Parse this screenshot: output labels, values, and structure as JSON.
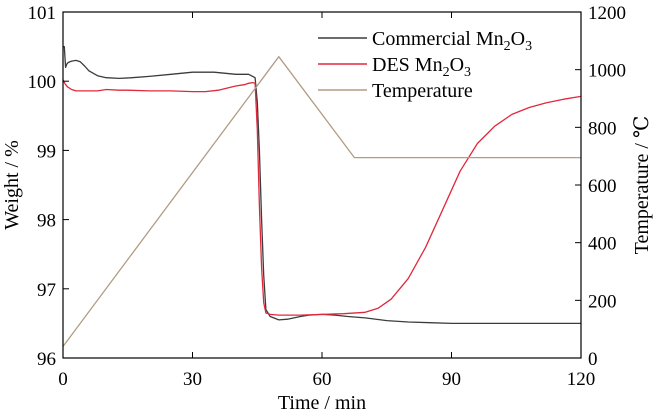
{
  "chart_data": {
    "type": "line",
    "xlabel": "Time / min",
    "ylabel_left": "Weight / %",
    "ylabel_right": "Temperature / ℃",
    "xlim": [
      0,
      120
    ],
    "ylim_left": [
      96,
      101
    ],
    "ylim_right": [
      0,
      1200
    ],
    "xticks": [
      "0",
      "30",
      "60",
      "90",
      "120"
    ],
    "yticks_left": [
      "96",
      "97",
      "98",
      "99",
      "100",
      "101"
    ],
    "yticks_right": [
      "0",
      "200",
      "400",
      "600",
      "800",
      "1000",
      "1200"
    ],
    "legend_position": "top-right",
    "grid": false,
    "series": [
      {
        "name": "Commercial Mn2O3",
        "legend_main": "Commercial Mn",
        "legend_sub1": "2",
        "legend_mid": "O",
        "legend_sub2": "3",
        "axis": "left",
        "color": "#3c3c3c",
        "x": [
          0,
          0.3,
          0.6,
          0.9,
          1.2,
          2,
          3,
          4,
          5,
          6,
          8,
          10,
          13,
          16,
          20,
          25,
          30,
          35,
          40,
          43,
          44.5,
          45,
          45.5,
          46,
          46.5,
          47,
          48,
          50,
          52,
          55,
          57,
          60,
          63,
          66,
          70,
          75,
          80,
          85,
          90,
          100,
          110,
          120
        ],
        "y": [
          100.5,
          100.5,
          100.2,
          100.25,
          100.27,
          100.29,
          100.3,
          100.28,
          100.22,
          100.15,
          100.08,
          100.05,
          100.04,
          100.05,
          100.07,
          100.1,
          100.13,
          100.13,
          100.1,
          100.1,
          100.05,
          99.7,
          99.0,
          98.0,
          97.2,
          96.7,
          96.6,
          96.55,
          96.56,
          96.6,
          96.62,
          96.63,
          96.62,
          96.6,
          96.58,
          96.54,
          96.52,
          96.51,
          96.5,
          96.5,
          96.5,
          96.5
        ]
      },
      {
        "name": "DES Mn2O3",
        "legend_main": "DES Mn",
        "legend_sub1": "2",
        "legend_mid": "O",
        "legend_sub2": "3",
        "axis": "left",
        "color": "#e0283c",
        "x": [
          0,
          0.5,
          1,
          2,
          3,
          5,
          8,
          10,
          13,
          15,
          20,
          25,
          30,
          33,
          36,
          38,
          40,
          42,
          43,
          44,
          44.5,
          45,
          45.5,
          46,
          46.5,
          47,
          48,
          50,
          55,
          60,
          65,
          70,
          73,
          76,
          80,
          84,
          88,
          92,
          96,
          100,
          104,
          108,
          112,
          116,
          120
        ],
        "y": [
          100.02,
          99.96,
          99.92,
          99.88,
          99.86,
          99.86,
          99.86,
          99.88,
          99.87,
          99.87,
          99.86,
          99.86,
          99.85,
          99.85,
          99.87,
          99.9,
          99.93,
          99.95,
          99.97,
          99.98,
          99.97,
          99.3,
          98.2,
          97.3,
          96.8,
          96.65,
          96.63,
          96.62,
          96.62,
          96.63,
          96.64,
          96.66,
          96.72,
          96.85,
          97.15,
          97.6,
          98.15,
          98.7,
          99.1,
          99.35,
          99.52,
          99.62,
          99.69,
          99.74,
          99.78
        ]
      },
      {
        "name": "Temperature",
        "legend_main": "Temperature",
        "axis": "right",
        "color": "#b39b84",
        "x": [
          0,
          50,
          67.5,
          120
        ],
        "y": [
          40,
          1045,
          695,
          695
        ]
      }
    ]
  }
}
